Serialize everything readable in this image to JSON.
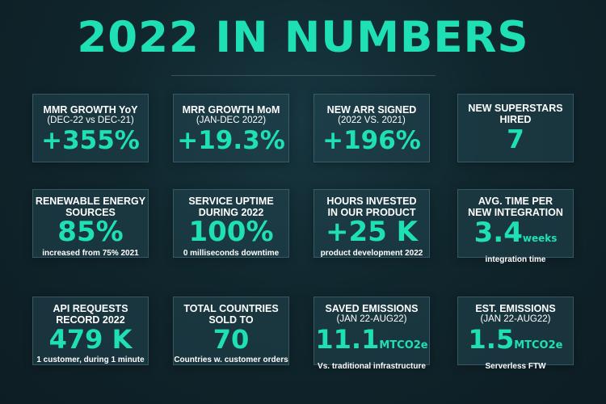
{
  "title": "2022 IN NUMBERS",
  "cards": [
    {
      "label": "MMR GROWTH YoY",
      "sub": "(DEC-22 vs DEC-21)",
      "value": "+355%"
    },
    {
      "label": "MRR GROWTH MoM",
      "sub": "(JAN-DEC 2022)",
      "value": "+19.3%"
    },
    {
      "label": "NEW ARR SIGNED",
      "sub": "(2022 VS. 2021)",
      "value": "+196%"
    },
    {
      "label1": "NEW SUPERSTARS",
      "label2": "HIRED",
      "value": "7"
    },
    {
      "label1": "RENEWABLE ENERGY",
      "label2": "SOURCES",
      "value": "85%",
      "note": "increased from 75% 2021"
    },
    {
      "label1": "SERVICE UPTIME",
      "label2": "DURING 2022",
      "value": "100%",
      "note": "0 milliseconds downtime"
    },
    {
      "label1": "HOURS INVESTED",
      "label2": "IN OUR PRODUCT",
      "value": "+25 K",
      "note": "product development 2022"
    },
    {
      "label1": "AVG. TIME PER",
      "label2": "NEW INTEGRATION",
      "value": "3.4",
      "unit": "weeks",
      "note": "integration time"
    },
    {
      "label1": "API REQUESTS",
      "label2": "RECORD 2022",
      "value": "479 K",
      "note": "1 customer, during 1 minute"
    },
    {
      "label1": "TOTAL COUNTRIES",
      "label2": "SOLD TO",
      "value": "70",
      "note": "Countries w. customer orders"
    },
    {
      "label": "SAVED EMISSIONS",
      "sub": "(JAN 22-AUG22)",
      "value": "11.1",
      "unit": "MTCO2e",
      "note": "Vs.  traditional infrastructure"
    },
    {
      "label": "EST. EMISSIONS",
      "sub": "(JAN 22-AUG22)",
      "value": "1.5",
      "unit": "MTCO2e",
      "note": "Serverless FTW"
    }
  ]
}
